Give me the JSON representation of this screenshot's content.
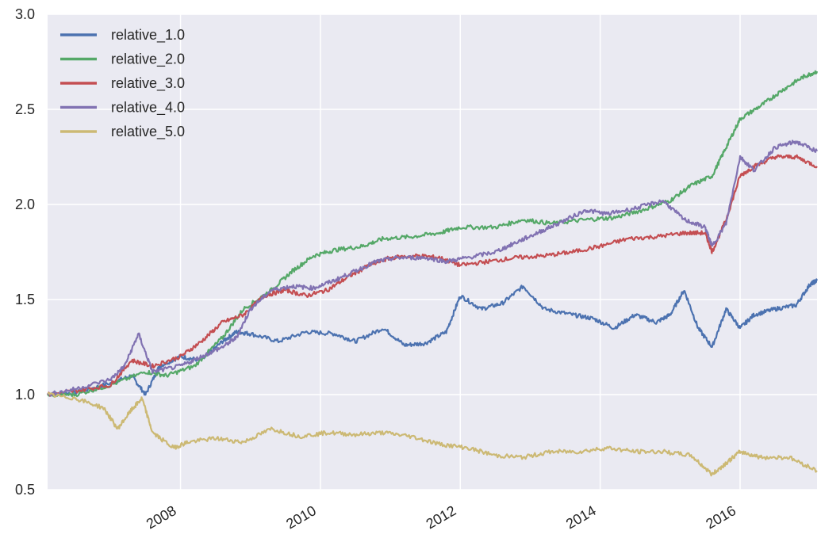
{
  "chart_data": {
    "type": "line",
    "title": "",
    "xlabel": "",
    "ylabel": "",
    "xlim": [
      2006.1,
      2017.1
    ],
    "ylim": [
      0.5,
      3.0
    ],
    "x_ticks": [
      2008,
      2010,
      2012,
      2014,
      2016
    ],
    "x_tick_labels": [
      "2008",
      "2010",
      "2012",
      "2014",
      "2016"
    ],
    "y_ticks": [
      0.5,
      1.0,
      1.5,
      2.0,
      2.5,
      3.0
    ],
    "y_tick_labels": [
      "0.5",
      "1.0",
      "1.5",
      "2.0",
      "2.5",
      "3.0"
    ],
    "grid": true,
    "legend_position": "top-left",
    "series": [
      {
        "name": "relative_1.0",
        "color": "#4c72b0",
        "points": [
          [
            2006.1,
            1.0
          ],
          [
            2006.5,
            1.01
          ],
          [
            2007.0,
            1.06
          ],
          [
            2007.3,
            1.1
          ],
          [
            2007.5,
            1.0
          ],
          [
            2007.7,
            1.15
          ],
          [
            2008.0,
            1.2
          ],
          [
            2008.3,
            1.18
          ],
          [
            2008.6,
            1.28
          ],
          [
            2008.8,
            1.33
          ],
          [
            2009.0,
            1.32
          ],
          [
            2009.4,
            1.28
          ],
          [
            2009.8,
            1.33
          ],
          [
            2010.2,
            1.32
          ],
          [
            2010.5,
            1.28
          ],
          [
            2010.9,
            1.35
          ],
          [
            2011.2,
            1.26
          ],
          [
            2011.5,
            1.27
          ],
          [
            2011.8,
            1.33
          ],
          [
            2012.0,
            1.52
          ],
          [
            2012.3,
            1.45
          ],
          [
            2012.6,
            1.48
          ],
          [
            2012.9,
            1.57
          ],
          [
            2013.2,
            1.45
          ],
          [
            2013.6,
            1.42
          ],
          [
            2013.9,
            1.4
          ],
          [
            2014.2,
            1.35
          ],
          [
            2014.5,
            1.42
          ],
          [
            2014.8,
            1.38
          ],
          [
            2015.0,
            1.42
          ],
          [
            2015.2,
            1.55
          ],
          [
            2015.4,
            1.35
          ],
          [
            2015.6,
            1.25
          ],
          [
            2015.8,
            1.45
          ],
          [
            2016.0,
            1.35
          ],
          [
            2016.2,
            1.42
          ],
          [
            2016.5,
            1.45
          ],
          [
            2016.8,
            1.47
          ],
          [
            2017.0,
            1.58
          ],
          [
            2017.1,
            1.6
          ]
        ]
      },
      {
        "name": "relative_2.0",
        "color": "#55a868",
        "points": [
          [
            2006.1,
            1.0
          ],
          [
            2006.5,
            1.0
          ],
          [
            2007.0,
            1.05
          ],
          [
            2007.5,
            1.12
          ],
          [
            2007.8,
            1.1
          ],
          [
            2008.2,
            1.15
          ],
          [
            2008.6,
            1.3
          ],
          [
            2008.9,
            1.45
          ],
          [
            2009.3,
            1.55
          ],
          [
            2009.6,
            1.65
          ],
          [
            2009.9,
            1.73
          ],
          [
            2010.2,
            1.76
          ],
          [
            2010.6,
            1.78
          ],
          [
            2010.9,
            1.82
          ],
          [
            2011.3,
            1.83
          ],
          [
            2011.7,
            1.85
          ],
          [
            2012.0,
            1.88
          ],
          [
            2012.5,
            1.88
          ],
          [
            2012.9,
            1.92
          ],
          [
            2013.3,
            1.9
          ],
          [
            2013.8,
            1.92
          ],
          [
            2014.2,
            1.93
          ],
          [
            2014.6,
            1.97
          ],
          [
            2015.0,
            2.02
          ],
          [
            2015.3,
            2.1
          ],
          [
            2015.6,
            2.15
          ],
          [
            2015.8,
            2.3
          ],
          [
            2016.0,
            2.45
          ],
          [
            2016.3,
            2.52
          ],
          [
            2016.6,
            2.6
          ],
          [
            2016.9,
            2.67
          ],
          [
            2017.1,
            2.7
          ]
        ]
      },
      {
        "name": "relative_3.0",
        "color": "#c44e52",
        "points": [
          [
            2006.1,
            1.0
          ],
          [
            2006.5,
            1.02
          ],
          [
            2007.0,
            1.05
          ],
          [
            2007.3,
            1.18
          ],
          [
            2007.6,
            1.15
          ],
          [
            2008.0,
            1.2
          ],
          [
            2008.3,
            1.28
          ],
          [
            2008.6,
            1.38
          ],
          [
            2008.9,
            1.42
          ],
          [
            2009.2,
            1.52
          ],
          [
            2009.5,
            1.55
          ],
          [
            2009.8,
            1.52
          ],
          [
            2010.1,
            1.55
          ],
          [
            2010.4,
            1.62
          ],
          [
            2010.7,
            1.68
          ],
          [
            2011.0,
            1.72
          ],
          [
            2011.4,
            1.73
          ],
          [
            2011.7,
            1.72
          ],
          [
            2012.0,
            1.68
          ],
          [
            2012.4,
            1.7
          ],
          [
            2012.8,
            1.72
          ],
          [
            2013.2,
            1.73
          ],
          [
            2013.6,
            1.75
          ],
          [
            2014.0,
            1.78
          ],
          [
            2014.4,
            1.82
          ],
          [
            2014.8,
            1.83
          ],
          [
            2015.2,
            1.85
          ],
          [
            2015.5,
            1.85
          ],
          [
            2015.6,
            1.75
          ],
          [
            2015.8,
            1.92
          ],
          [
            2016.0,
            2.15
          ],
          [
            2016.2,
            2.2
          ],
          [
            2016.5,
            2.25
          ],
          [
            2016.8,
            2.25
          ],
          [
            2017.1,
            2.2
          ]
        ]
      },
      {
        "name": "relative_4.0",
        "color": "#8172b2",
        "points": [
          [
            2006.1,
            1.0
          ],
          [
            2006.5,
            1.03
          ],
          [
            2007.0,
            1.08
          ],
          [
            2007.2,
            1.15
          ],
          [
            2007.4,
            1.32
          ],
          [
            2007.6,
            1.12
          ],
          [
            2008.0,
            1.15
          ],
          [
            2008.3,
            1.2
          ],
          [
            2008.6,
            1.25
          ],
          [
            2008.8,
            1.3
          ],
          [
            2009.0,
            1.45
          ],
          [
            2009.3,
            1.55
          ],
          [
            2009.6,
            1.57
          ],
          [
            2009.9,
            1.56
          ],
          [
            2010.2,
            1.6
          ],
          [
            2010.5,
            1.65
          ],
          [
            2010.8,
            1.7
          ],
          [
            2011.1,
            1.72
          ],
          [
            2011.5,
            1.72
          ],
          [
            2011.8,
            1.7
          ],
          [
            2012.1,
            1.72
          ],
          [
            2012.5,
            1.75
          ],
          [
            2012.8,
            1.8
          ],
          [
            2013.1,
            1.85
          ],
          [
            2013.4,
            1.9
          ],
          [
            2013.8,
            1.97
          ],
          [
            2014.1,
            1.95
          ],
          [
            2014.5,
            1.98
          ],
          [
            2014.9,
            2.02
          ],
          [
            2015.2,
            1.92
          ],
          [
            2015.5,
            1.88
          ],
          [
            2015.6,
            1.78
          ],
          [
            2015.8,
            1.9
          ],
          [
            2016.0,
            2.25
          ],
          [
            2016.2,
            2.18
          ],
          [
            2016.5,
            2.3
          ],
          [
            2016.8,
            2.33
          ],
          [
            2017.1,
            2.28
          ]
        ]
      },
      {
        "name": "relative_5.0",
        "color": "#ccb974",
        "points": [
          [
            2006.1,
            1.0
          ],
          [
            2006.5,
            0.98
          ],
          [
            2006.9,
            0.93
          ],
          [
            2007.1,
            0.82
          ],
          [
            2007.3,
            0.92
          ],
          [
            2007.45,
            0.98
          ],
          [
            2007.6,
            0.8
          ],
          [
            2007.9,
            0.72
          ],
          [
            2008.1,
            0.75
          ],
          [
            2008.5,
            0.77
          ],
          [
            2008.9,
            0.75
          ],
          [
            2009.3,
            0.82
          ],
          [
            2009.7,
            0.78
          ],
          [
            2010.1,
            0.8
          ],
          [
            2010.5,
            0.79
          ],
          [
            2010.9,
            0.8
          ],
          [
            2011.3,
            0.78
          ],
          [
            2011.7,
            0.74
          ],
          [
            2012.1,
            0.72
          ],
          [
            2012.5,
            0.68
          ],
          [
            2012.9,
            0.67
          ],
          [
            2013.3,
            0.7
          ],
          [
            2013.7,
            0.7
          ],
          [
            2014.1,
            0.72
          ],
          [
            2014.5,
            0.7
          ],
          [
            2014.9,
            0.7
          ],
          [
            2015.3,
            0.68
          ],
          [
            2015.6,
            0.58
          ],
          [
            2015.8,
            0.64
          ],
          [
            2016.0,
            0.7
          ],
          [
            2016.3,
            0.67
          ],
          [
            2016.7,
            0.67
          ],
          [
            2017.1,
            0.6
          ]
        ]
      }
    ]
  }
}
